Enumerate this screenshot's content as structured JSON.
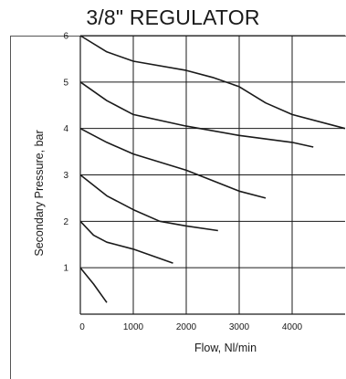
{
  "chart_data": {
    "type": "line",
    "title": "3/8\" REGULATOR",
    "xlabel": "Flow, Nl/min",
    "ylabel": "Secondary Pressure, bar",
    "xlim": [
      0,
      5000
    ],
    "ylim": [
      0,
      6
    ],
    "xticks": [
      0,
      1000,
      2000,
      3000,
      4000
    ],
    "yticks": [
      1,
      2,
      3,
      4,
      5,
      6
    ],
    "grid": true,
    "legend": "none",
    "line_color": "#1a1a1a",
    "series": [
      {
        "values": [
          [
            0,
            1.0
          ],
          [
            250,
            0.65
          ],
          [
            500,
            0.25
          ]
        ]
      },
      {
        "values": [
          [
            0,
            2.0
          ],
          [
            250,
            1.7
          ],
          [
            500,
            1.55
          ],
          [
            1000,
            1.4
          ],
          [
            1750,
            1.1
          ]
        ]
      },
      {
        "values": [
          [
            0,
            3.0
          ],
          [
            500,
            2.55
          ],
          [
            1000,
            2.25
          ],
          [
            1500,
            2.0
          ],
          [
            2000,
            1.9
          ],
          [
            2600,
            1.8
          ]
        ]
      },
      {
        "values": [
          [
            0,
            4.0
          ],
          [
            500,
            3.7
          ],
          [
            1000,
            3.45
          ],
          [
            2000,
            3.1
          ],
          [
            3000,
            2.65
          ],
          [
            3500,
            2.5
          ]
        ]
      },
      {
        "values": [
          [
            0,
            5.0
          ],
          [
            500,
            4.6
          ],
          [
            1000,
            4.3
          ],
          [
            2000,
            4.05
          ],
          [
            3000,
            3.85
          ],
          [
            4000,
            3.7
          ],
          [
            4400,
            3.6
          ]
        ]
      },
      {
        "values": [
          [
            0,
            6.0
          ],
          [
            500,
            5.65
          ],
          [
            1000,
            5.45
          ],
          [
            2000,
            5.25
          ],
          [
            2500,
            5.1
          ],
          [
            3000,
            4.9
          ],
          [
            3500,
            4.55
          ],
          [
            4000,
            4.3
          ],
          [
            5000,
            4.0
          ]
        ]
      }
    ]
  }
}
